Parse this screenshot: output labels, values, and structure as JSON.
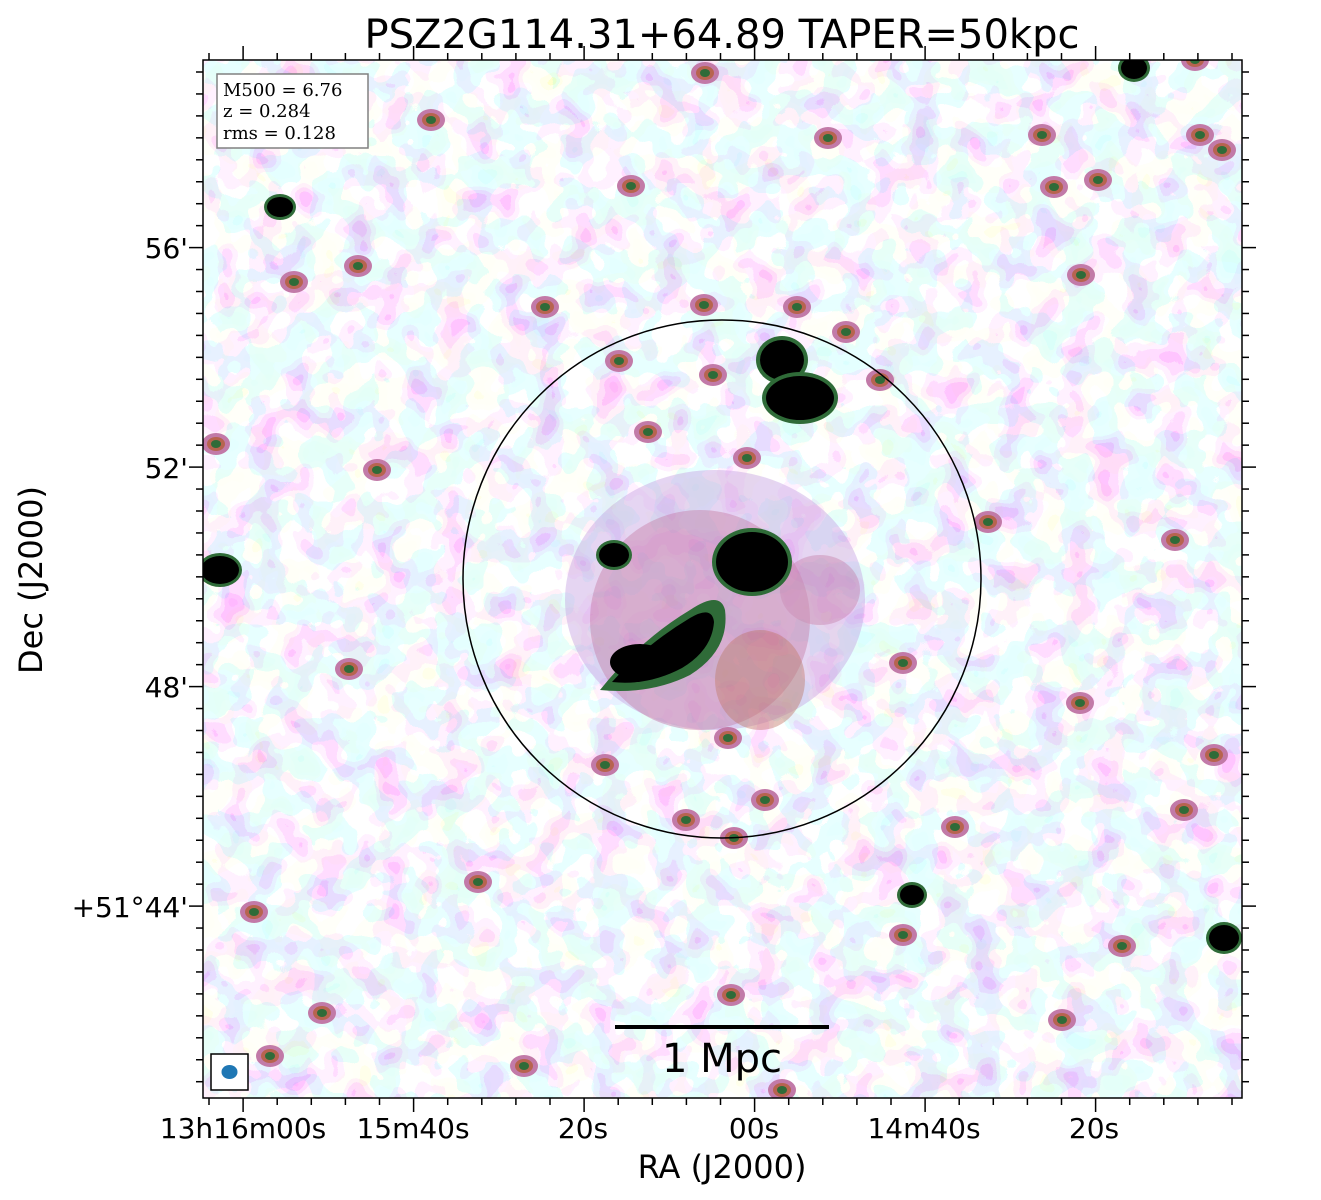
{
  "title": "PSZ2G114.31+64.89 TAPER=50kpc",
  "info_box": {
    "lines": [
      "M500 = 6.76",
      "z = 0.284",
      "rms = 0.128"
    ]
  },
  "axes": {
    "xlabel": "RA (J2000)",
    "ylabel": "Dec (J2000)",
    "x_ticks": [
      "13h16m00s",
      "15m40s",
      "20s",
      "00s",
      "14m40s",
      "20s"
    ],
    "y_ticks": [
      "56'",
      "52'",
      "48'",
      "+51°44'"
    ]
  },
  "scale_bar": {
    "label": "1 Mpc"
  },
  "colors": {
    "background": "#ffffff",
    "frame": "#000000",
    "faint_emission": "#b9d6f0",
    "low_emission": "#c6a6e2",
    "mid_emission": "#c27aa8",
    "high_emission": "#b7644f",
    "peak_emission": "#2f6b38",
    "saturated": "#000000",
    "beam": "#1f77b4"
  }
}
